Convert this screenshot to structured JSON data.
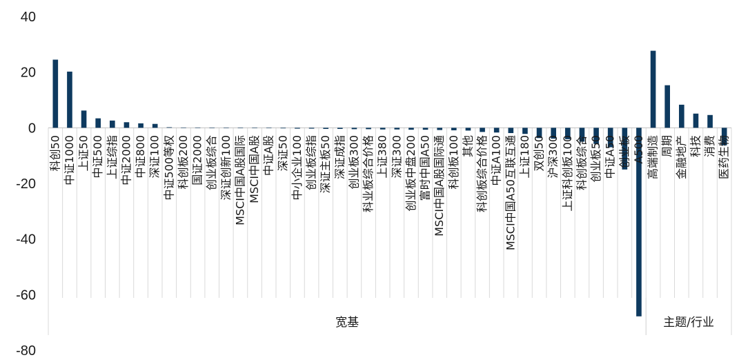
{
  "chart_data": {
    "type": "bar",
    "ylim": [
      -80,
      40
    ],
    "yticks": [
      "40",
      "20",
      "0",
      "-20",
      "-40",
      "-60",
      "-80"
    ],
    "grid": true,
    "bar_color": "#0e3a5f",
    "categories": [
      "科创50",
      "中证1000",
      "上证50",
      "中证500",
      "上证综指",
      "中证2000",
      "中证800",
      "深证100",
      "中证500等权",
      "科创板200",
      "国证2000",
      "创业板综合",
      "深证创新100",
      "MSCI中国A股国际",
      "MSCI中国A股",
      "中证A股",
      "深证50",
      "中小企业100",
      "创业板综指",
      "深证主板50",
      "深证成指",
      "创业板300",
      "科业板综合价格",
      "上证380",
      "深证300",
      "创业板中盘200",
      "富时中国A50",
      "MSCI中国A股国际通",
      "科创板100",
      "其他",
      "科创板综合价格",
      "中证A100",
      "MSCI中国A50互联互通",
      "上证180",
      "双创50",
      "沪深300",
      "上证科创板100",
      "科创板综合",
      "创业板50",
      "中证A50",
      "创业板",
      "A500",
      "高端制造",
      "周期",
      "金融地产",
      "科技",
      "消费",
      "医药生物"
    ],
    "values": [
      24.5,
      20.2,
      6.2,
      3.4,
      2.6,
      2.0,
      1.6,
      1.4,
      0.2,
      0.1,
      0.1,
      0.05,
      0.05,
      0.0,
      0.0,
      -0.1,
      -0.2,
      -0.3,
      -0.3,
      -0.4,
      -0.4,
      -0.5,
      -0.5,
      -0.6,
      -0.6,
      -0.7,
      -0.7,
      -0.8,
      -0.9,
      -1.0,
      -1.5,
      -1.7,
      -1.9,
      -2.2,
      -3.7,
      -3.9,
      -4.1,
      -5.0,
      -5.8,
      -7.0,
      -15.0,
      -67.8,
      27.7,
      15.3,
      8.3,
      5.1,
      4.6,
      -6.3
    ],
    "groups": [
      {
        "label": "宽基",
        "start": 0,
        "end": 41
      },
      {
        "label": "主题/行业",
        "start": 42,
        "end": 47
      }
    ]
  }
}
